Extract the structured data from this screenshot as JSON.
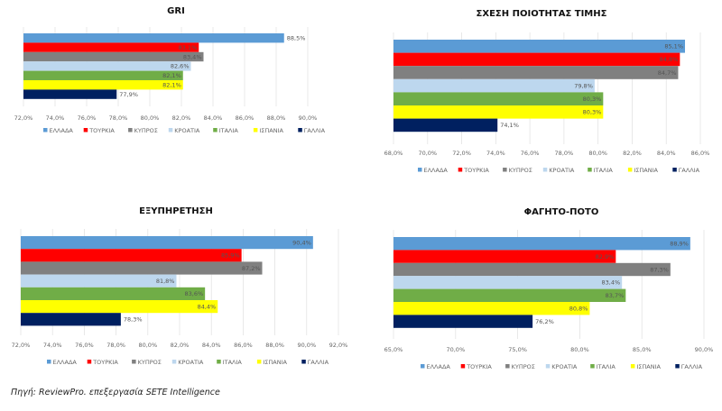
{
  "colors": {
    "ΕΛΛΑΔΑ": "#5b9bd5",
    "ΤΟΥΡΚΙΑ": "#ff0000",
    "ΚΥΠΡΟΣ": "#808080",
    "ΚΡΟΑΤΙΑ": "#bdd7ee",
    "ΙΤΑΛΙΑ": "#70ad47",
    "ΙΣΠΑΝΙΑ": "#ffff00",
    "ΓΑΛΛΙΑ": "#002060"
  },
  "chart_data": [
    {
      "type": "bar",
      "orientation": "horizontal",
      "title": "GRI",
      "categories": [
        "ΕΛΛΑΔΑ",
        "ΤΟΥΡΚΙΑ",
        "ΚΥΠΡΟΣ",
        "ΚΡΟΑΤΙΑ",
        "ΙΤΑΛΙΑ",
        "ΙΣΠΑΝΙΑ",
        "ΓΑΛΛΙΑ"
      ],
      "values": [
        88.5,
        83.1,
        83.4,
        82.6,
        82.1,
        82.1,
        77.9
      ],
      "value_labels": [
        "88,5%",
        "83,1%",
        "83,4%",
        "82,6%",
        "82,1%",
        "82,1%",
        "77,9%"
      ],
      "xlim": [
        72,
        90
      ],
      "xticks": [
        "72,0%",
        "74,0%",
        "76,0%",
        "78,0%",
        "80,0%",
        "82,0%",
        "84,0%",
        "86,0%",
        "88,0%",
        "90,0%"
      ],
      "xlabel": "",
      "ylabel": "",
      "grid": true,
      "legend": [
        "ΕΛΛΑΔΑ",
        "ΤΟΥΡΚΙΑ",
        "ΚΥΠΡΟΣ",
        "ΚΡΟΑΤΙΑ",
        "ΙΤΑΛΙΑ",
        "ΙΣΠΑΝΙΑ",
        "ΓΑΛΛΙΑ"
      ],
      "legend_position": "bottom"
    },
    {
      "type": "bar",
      "orientation": "horizontal",
      "title": "ΣΧΕΣΗ ΠΟΙΟΤΗΤΑΣ ΤΙΜΗΣ",
      "categories": [
        "ΕΛΛΑΔΑ",
        "ΤΟΥΡΚΙΑ",
        "ΚΥΠΡΟΣ",
        "ΚΡΟΑΤΙΑ",
        "ΙΤΑΛΙΑ",
        "ΙΣΠΑΝΙΑ",
        "ΓΑΛΛΙΑ"
      ],
      "values": [
        85.1,
        84.8,
        84.7,
        79.8,
        80.3,
        80.3,
        74.1
      ],
      "value_labels": [
        "85,1%",
        "84,8%",
        "84,7%",
        "79,8%",
        "80,3%",
        "80,3%",
        "74,1%"
      ],
      "xlim": [
        68,
        86
      ],
      "xticks": [
        "68,0%",
        "70,0%",
        "72,0%",
        "74,0%",
        "76,0%",
        "78,0%",
        "80,0%",
        "82,0%",
        "84,0%",
        "86,0%"
      ],
      "xlabel": "",
      "ylabel": "",
      "grid": true,
      "legend": [
        "ΕΛΛΑΔΑ",
        "ΤΟΥΡΚΙΑ",
        "ΚΥΠΡΟΣ",
        "ΚΡΟΑΤΙΑ",
        "ΙΤΑΛΙΑ",
        "ΙΣΠΑΝΙΑ",
        "ΓΑΛΛΙΑ"
      ],
      "legend_position": "bottom"
    },
    {
      "type": "bar",
      "orientation": "horizontal",
      "title": "ΕΞΥΠΗΡΕΤΗΣΗ",
      "categories": [
        "ΕΛΛΑΔΑ",
        "ΤΟΥΡΚΙΑ",
        "ΚΥΠΡΟΣ",
        "ΚΡΟΑΤΙΑ",
        "ΙΤΑΛΙΑ",
        "ΙΣΠΑΝΙΑ",
        "ΓΑΛΛΙΑ"
      ],
      "values": [
        90.4,
        85.9,
        87.2,
        81.8,
        83.6,
        84.4,
        78.3
      ],
      "value_labels": [
        "90,4%",
        "85,9%",
        "87,2%",
        "81,8%",
        "83,6%",
        "84,4%",
        "78,3%"
      ],
      "xlim": [
        72,
        92
      ],
      "xticks": [
        "72,0%",
        "74,0%",
        "76,0%",
        "78,0%",
        "80,0%",
        "82,0%",
        "84,0%",
        "86,0%",
        "88,0%",
        "90,0%",
        "92,0%"
      ],
      "xlabel": "",
      "ylabel": "",
      "grid": true,
      "legend": [
        "ΕΛΛΑΔΑ",
        "ΤΟΥΡΚΙΑ",
        "ΚΥΠΡΟΣ",
        "ΚΡΟΑΤΙΑ",
        "ΙΤΑΛΙΑ",
        "ΙΣΠΑΝΙΑ",
        "ΓΑΛΛΙΑ"
      ],
      "legend_position": "bottom"
    },
    {
      "type": "bar",
      "orientation": "horizontal",
      "title": "ΦΑΓΗΤΟ-ΠΟΤΟ",
      "categories": [
        "ΕΛΛΑΔΑ",
        "ΤΟΥΡΚΙΑ",
        "ΚΥΠΡΟΣ",
        "ΚΡΟΑΤΙΑ",
        "ΙΤΑΛΙΑ",
        "ΙΣΠΑΝΙΑ",
        "ΓΑΛΛΙΑ"
      ],
      "values": [
        88.9,
        82.9,
        87.3,
        83.4,
        83.7,
        80.8,
        76.2
      ],
      "value_labels": [
        "88,9%",
        "82,9%",
        "87,3%",
        "83,4%",
        "83,7%",
        "80,8%",
        "76,2%"
      ],
      "xlim": [
        65,
        90
      ],
      "xticks": [
        "65,0%",
        "70,0%",
        "75,0%",
        "80,0%",
        "85,0%",
        "90,0%"
      ],
      "xlabel": "",
      "ylabel": "",
      "grid": true,
      "legend": [
        "ΕΛΛΑΔΑ",
        "ΤΟΥΡΚΙΑ",
        "ΚΥΠΡΟΣ",
        "ΚΡΟΑΤΙΑ",
        "ΙΤΑΛΙΑ",
        "ΙΣΠΑΝΙΑ",
        "ΓΑΛΛΙΑ"
      ],
      "legend_position": "bottom"
    }
  ],
  "source": "Πηγή: ReviewPro. επεξεργασία SETE Intelligence"
}
